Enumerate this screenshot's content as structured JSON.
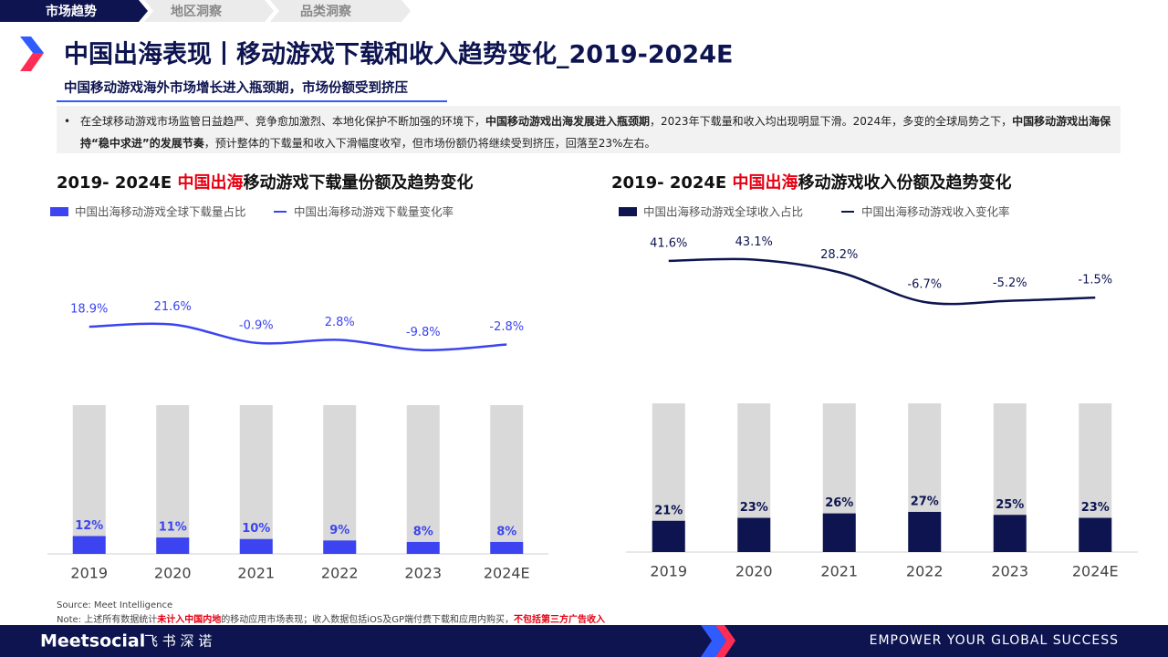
{
  "tabs": [
    "市场趋势",
    "地区洞察",
    "品类洞察"
  ],
  "title": "中国出海表现丨移动游戏下载和收入趋势变化_2019-2024E",
  "subtitle": "中国移动游戏海外市场增长进入瓶颈期，市场份额受到挤压",
  "summary": [
    {
      "text": "在全球移动游戏市场监管日益趋严、竞争愈加激烈、本地化保护不断加强的环境下，"
    },
    {
      "text": "中国移动游戏出海发展进入瓶颈期",
      "bold": true
    },
    {
      "text": "，2023年下载量和收入均出现明显下滑。2024年，多变的全球局势之下，"
    },
    {
      "text": "中国移动游戏出海保持“稳中求进”的发展节奏",
      "bold": true
    },
    {
      "text": "，预计整体的下载量和收入下滑幅度收窄，但市场份额仍将继续受到挤压，回落至23%左右。"
    }
  ],
  "chart_data": [
    {
      "type": "bar",
      "title": [
        {
          "text": "2019- 2024E "
        },
        {
          "text": "中国出海",
          "color": "#e60012"
        },
        {
          "text": "移动游戏下载量份额及趋势变化"
        }
      ],
      "categories": [
        "2019",
        "2020",
        "2021",
        "2022",
        "2023",
        "2024E"
      ],
      "ylim": [
        0,
        100
      ],
      "y2lim": [
        -260,
        140
      ],
      "series": [
        {
          "name": "中国出海移动游戏全球下载量占比",
          "type": "bar",
          "color": "#3b44f0",
          "values": [
            12,
            11,
            10,
            9,
            8,
            8
          ],
          "value_labels": [
            "12%",
            "11%",
            "10%",
            "9%",
            "8%",
            "8%"
          ]
        },
        {
          "name": "中国出海移动游戏下载量变化率",
          "type": "line",
          "axis": "y2",
          "color": "#3b44f0",
          "values": [
            18.9,
            21.6,
            -0.9,
            2.8,
            -9.8,
            -2.8
          ],
          "value_labels": [
            "18.9%",
            "21.6%",
            "-0.9%",
            "2.8%",
            "-9.8%",
            "-2.8%"
          ]
        }
      ]
    },
    {
      "type": "bar",
      "title": [
        {
          "text": "2019- 2024E "
        },
        {
          "text": "中国出海",
          "color": "#e60012"
        },
        {
          "text": "移动游戏收入份额及趋势变化"
        }
      ],
      "categories": [
        "2019",
        "2020",
        "2021",
        "2022",
        "2023",
        "2024E"
      ],
      "ylim": [
        0,
        100
      ],
      "y2lim": [
        -300,
        80
      ],
      "series": [
        {
          "name": "中国出海移动游戏全球收入占比",
          "type": "bar",
          "color": "#0d1450",
          "values": [
            21,
            23,
            26,
            27,
            25,
            23
          ],
          "value_labels": [
            "21%",
            "23%",
            "26%",
            "27%",
            "25%",
            "23%"
          ]
        },
        {
          "name": "中国出海移动游戏收入变化率",
          "type": "line",
          "axis": "y2",
          "color": "#0d1450",
          "values": [
            41.6,
            43.1,
            28.2,
            -6.7,
            -5.2,
            -1.5
          ],
          "value_labels": [
            "41.6%",
            "43.1%",
            "28.2%",
            "-6.7%",
            "-5.2%",
            "-1.5%"
          ]
        }
      ]
    }
  ],
  "source": "Source: Meet Intelligence",
  "note": [
    {
      "text": "Note: 上述所有数据统计"
    },
    {
      "text": "未计入中国内地",
      "color": "#e60012",
      "bold": true
    },
    {
      "text": "的移动应用市场表现；收入数据包括iOS及GP端付费下载和应用内购买，"
    },
    {
      "text": "不包括第三方广告收入",
      "color": "#e60012",
      "bold": true
    }
  ],
  "footer": {
    "brand": "Meetsocial",
    "brand_cn": "飞 书 深 诺",
    "slogan": "EMPOWER YOUR GLOBAL SUCCESS"
  }
}
